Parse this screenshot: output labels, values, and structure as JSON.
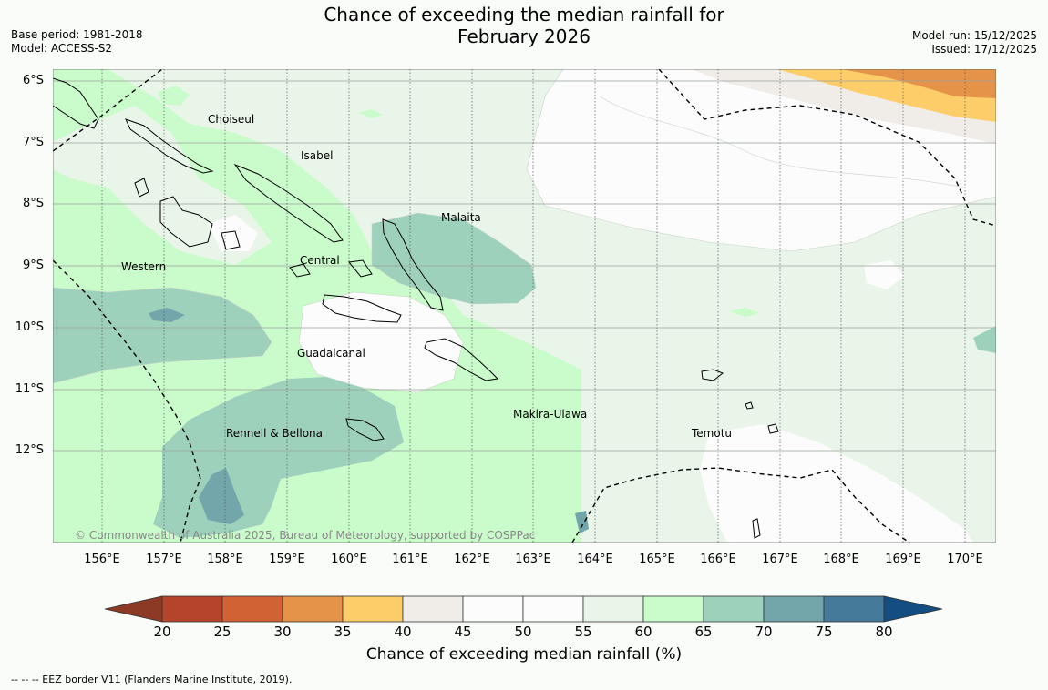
{
  "title": {
    "line1": "Chance of exceeding the median rainfall for",
    "line2": "February 2026"
  },
  "meta": {
    "base_period": "Base period: 1981-2018",
    "model": "Model: ACCESS-S2",
    "model_run": "Model run: 15/12/2025",
    "issued": "Issued: 17/12/2025"
  },
  "map": {
    "lat_labels": [
      "6°S",
      "7°S",
      "8°S",
      "9°S",
      "10°S",
      "11°S",
      "12°S"
    ],
    "lon_labels": [
      "156°E",
      "157°E",
      "158°E",
      "159°E",
      "160°E",
      "161°E",
      "162°E",
      "163°E",
      "164°E",
      "165°E",
      "166°E",
      "167°E",
      "168°E",
      "169°E",
      "170°E"
    ],
    "province_labels": [
      "Choiseul",
      "Isabel",
      "Malaita",
      "Western",
      "Central",
      "Guadalcanal",
      "Makira-Ulawa",
      "Rennell & Bellona",
      "Temotu"
    ],
    "copyright": "© Commonwealth of Australia 2025, Bureau of Meteorology, supported by COSPPac"
  },
  "colorbar": {
    "ticks": [
      "20",
      "25",
      "30",
      "35",
      "40",
      "45",
      "50",
      "55",
      "60",
      "65",
      "70",
      "75",
      "80"
    ],
    "colors": {
      "below_20": "#8c3a25",
      "20_25": "#b5452a",
      "25_30": "#d06233",
      "30_35": "#e49348",
      "35_40": "#fdcd6a",
      "40_45": "#f0ede9",
      "45_50": "#fbfcfb",
      "50_55": "#fbfcfb",
      "55_60": "#eaf5ea",
      "60_65": "#c9fcca",
      "65_70": "#9dd1bc",
      "70_75": "#73a6ab",
      "75_80": "#457a9b",
      "above_80": "#134d82"
    },
    "label": "Chance of exceeding median rainfall (%)"
  },
  "footnote": "-- -- -- EEZ border V11 (Flanders Marine Institute, 2019)."
}
